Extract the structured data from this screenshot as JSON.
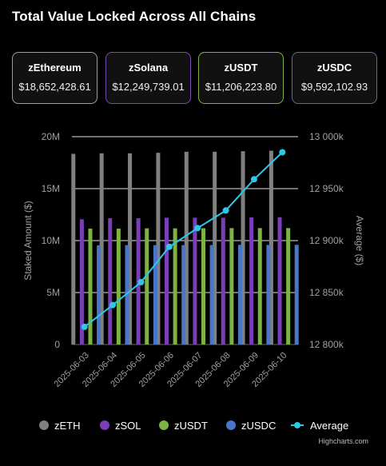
{
  "title": "Total Value Locked Across All Chains",
  "cards": [
    {
      "name": "zEthereum",
      "value": "$18,652,428.61",
      "border": "#9aa0a6"
    },
    {
      "name": "zSolana",
      "value": "$12,249,739.01",
      "border": "#7a4bb3"
    },
    {
      "name": "zUSDT",
      "value": "$11,206,223.80",
      "border": "#7cb342"
    },
    {
      "name": "zUSDC",
      "value": "$9,592,102.93",
      "border": "#4a6fb5"
    }
  ],
  "credit": "Highcharts.com",
  "chart_data": {
    "type": "bar",
    "categories": [
      "2025-06-03",
      "2025-06-04",
      "2025-06-05",
      "2025-06-06",
      "2025-06-07",
      "2025-06-08",
      "2025-06-09",
      "2025-06-10"
    ],
    "series": [
      {
        "name": "zETH",
        "color": "#808080",
        "values": [
          18350000,
          18400000,
          18400000,
          18450000,
          18550000,
          18550000,
          18600000,
          18652428.61
        ]
      },
      {
        "name": "zSOL",
        "color": "#7a3fb8",
        "values": [
          12050000,
          12150000,
          12150000,
          12200000,
          12200000,
          12200000,
          12230000,
          12249739.01
        ]
      },
      {
        "name": "zUSDT",
        "color": "#7cb342",
        "values": [
          11150000,
          11150000,
          11180000,
          11180000,
          11190000,
          11200000,
          11200000,
          11206223.8
        ]
      },
      {
        "name": "zUSDC",
        "color": "#4a76c9",
        "values": [
          9550000,
          9560000,
          9560000,
          9570000,
          9580000,
          9590000,
          9590000,
          9592102.93
        ]
      }
    ],
    "line_series": {
      "name": "Average",
      "color": "#2dc8e8",
      "values": [
        12817000,
        12838000,
        12860000,
        12894000,
        12912000,
        12929000,
        12959000,
        12985000
      ]
    },
    "ylabel": "Staked Amount ($)",
    "y2label": "Average ($)",
    "ylim": [
      0,
      20000000
    ],
    "y2lim": [
      12800000,
      13000000
    ],
    "yticks": [
      "0",
      "5M",
      "10M",
      "15M",
      "20M"
    ],
    "y2ticks": [
      "12 800k",
      "12 850k",
      "12 900k",
      "12 950k",
      "13 000k"
    ],
    "legend_position": "bottom",
    "grid": true
  }
}
